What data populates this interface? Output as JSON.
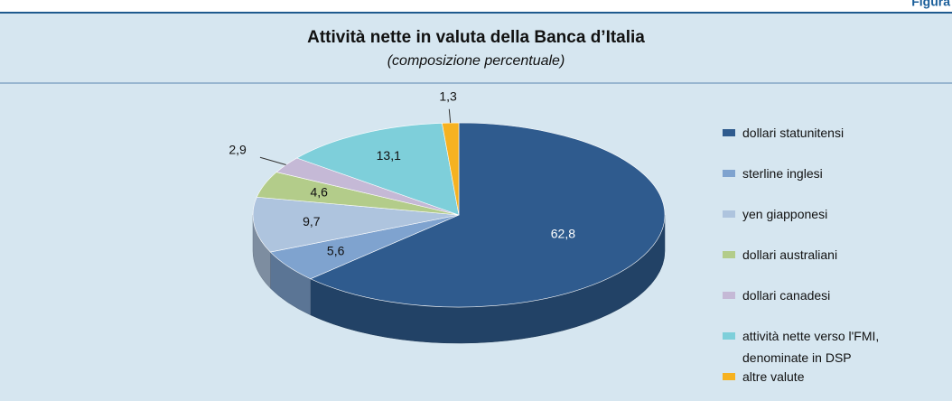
{
  "figure_label": "Figura",
  "chart_data": {
    "type": "pie3d",
    "title": "Attività nette in valuta della Banca d’Italia",
    "subtitle": "(composizione percentuale)",
    "categories": [
      "dollari statunitensi",
      "sterline inglesi",
      "yen giapponesi",
      "dollari australiani",
      "dollari canadesi",
      "attività nette verso l'FMI, denominate in DSP",
      "altre valute"
    ],
    "values": [
      62.8,
      5.6,
      9.7,
      4.6,
      2.9,
      13.1,
      1.3
    ],
    "value_labels": [
      "62,8",
      "5,6",
      "9,7",
      "4,6",
      "2,9",
      "13,1",
      "1,3"
    ],
    "colors": [
      "#2f5b8e",
      "#7fa3cf",
      "#aec4de",
      "#b3cc8a",
      "#c5b9d6",
      "#7ecfda",
      "#f6b221"
    ],
    "legend": "right"
  }
}
